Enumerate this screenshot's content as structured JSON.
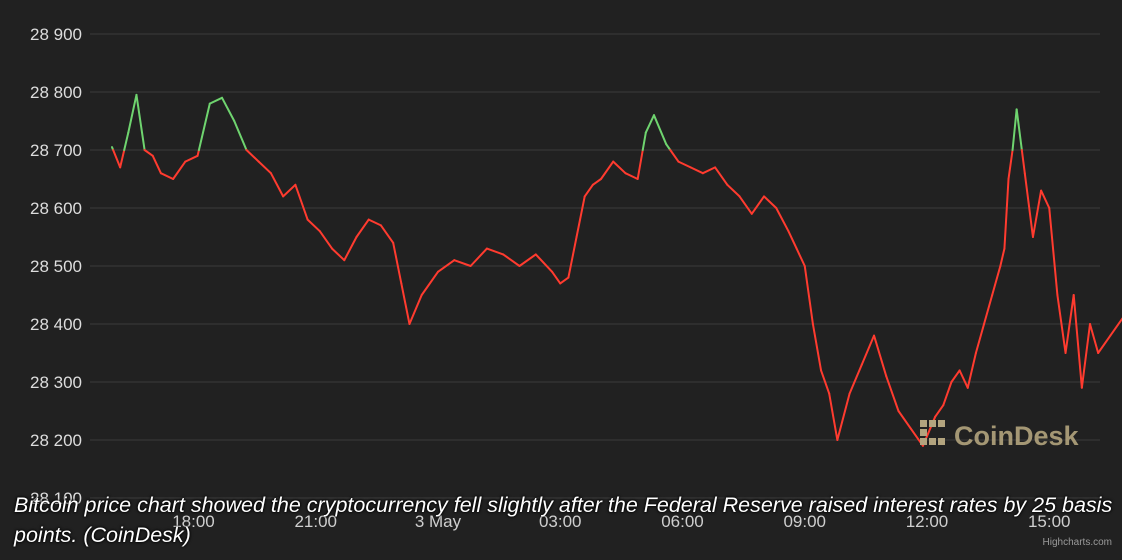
{
  "caption": "Bitcoin price chart showed the cryptocurrency fell slightly after the Federal Reserve raised interest rates by 25 basis points. (CoinDesk)",
  "watermark": {
    "text": "CoinDesk",
    "icon": "coindesk-logo-icon"
  },
  "credits": "Highcharts.com",
  "colors": {
    "background": "#212121",
    "grid": "#3c3c3c",
    "up": "#6fd46f",
    "down": "#ff3b2f"
  },
  "chart_data": {
    "type": "line",
    "title": "",
    "xlabel": "",
    "ylabel": "",
    "ylim": [
      28100,
      28900
    ],
    "y_ticks": [
      28900,
      28800,
      28700,
      28600,
      28500,
      28400,
      28300,
      28200,
      28100
    ],
    "y_tick_labels": [
      "28 900",
      "28 800",
      "28 700",
      "28 600",
      "28 500",
      "28 400",
      "28 300",
      "28 200",
      "28 100"
    ],
    "x_range": [
      "2 May 16:00",
      "3 May 17:00"
    ],
    "x_ticks": [
      "18:00",
      "21:00",
      "3 May",
      "03:00",
      "06:00",
      "09:00",
      "12:00",
      "15:00"
    ],
    "x_tick_hours": [
      2,
      5,
      8,
      11,
      14,
      17,
      20,
      23
    ],
    "reference_value": 28700,
    "grid": true,
    "legend": "none",
    "series": [
      {
        "x_hours": [
          0,
          0.2,
          0.4,
          0.6,
          0.8,
          1.0,
          1.2,
          1.5,
          1.8,
          2.1,
          2.4,
          2.7,
          3.0,
          3.3,
          3.6,
          3.9,
          4.2,
          4.5,
          4.8,
          5.1,
          5.4,
          5.7,
          6.0,
          6.3,
          6.6,
          6.9,
          7.1,
          7.3,
          7.6,
          8.0,
          8.4,
          8.8,
          9.2,
          9.6,
          10.0,
          10.4,
          10.8,
          11.0,
          11.2,
          11.4,
          11.6,
          11.8,
          12.0,
          12.3,
          12.6,
          12.9,
          13.1,
          13.3,
          13.6,
          13.9,
          14.2,
          14.5,
          14.8,
          15.1,
          15.4,
          15.7,
          16.0,
          16.3,
          16.6,
          16.8,
          17.0,
          17.2,
          17.4,
          17.6,
          17.8,
          18.1,
          18.4,
          18.7,
          19.0,
          19.3,
          19.6,
          19.9,
          20.2,
          20.4,
          20.6,
          20.8,
          21.0,
          21.2,
          21.4,
          21.6,
          21.8,
          21.9,
          22.0,
          22.1,
          22.2,
          22.4,
          22.6,
          22.8,
          23.0,
          23.2,
          23.4,
          23.6,
          23.8,
          24.0,
          24.2,
          24.5,
          24.8
        ],
        "values": [
          28705,
          28670,
          28730,
          28795,
          28700,
          28690,
          28660,
          28650,
          28680,
          28690,
          28780,
          28790,
          28750,
          28700,
          28680,
          28660,
          28620,
          28640,
          28580,
          28560,
          28530,
          28510,
          28550,
          28580,
          28570,
          28540,
          28470,
          28400,
          28450,
          28490,
          28510,
          28500,
          28530,
          28520,
          28500,
          28520,
          28490,
          28470,
          28480,
          28550,
          28620,
          28640,
          28650,
          28680,
          28660,
          28650,
          28730,
          28760,
          28710,
          28680,
          28670,
          28660,
          28670,
          28640,
          28620,
          28590,
          28620,
          28600,
          28560,
          28530,
          28500,
          28400,
          28320,
          28280,
          28200,
          28280,
          28330,
          28380,
          28310,
          28250,
          28220,
          28190,
          28240,
          28260,
          28300,
          28320,
          28290,
          28350,
          28400,
          28450,
          28500,
          28530,
          28650,
          28700,
          28770,
          28660,
          28550,
          28630,
          28600,
          28450,
          28350,
          28450,
          28290,
          28400,
          28350,
          28380,
          28410
        ]
      }
    ]
  }
}
